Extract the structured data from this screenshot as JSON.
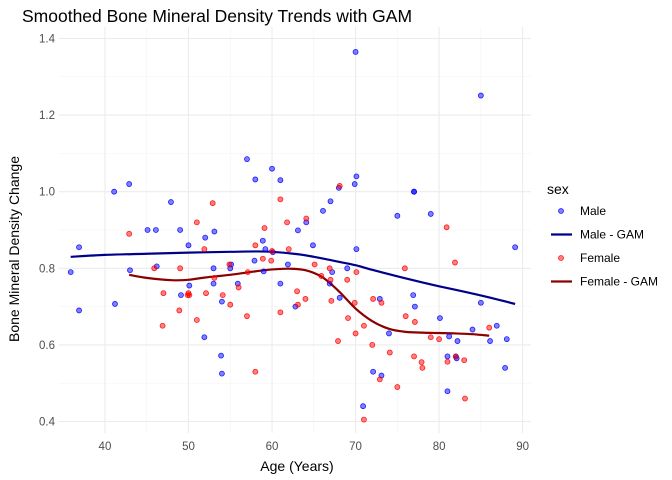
{
  "chart_data": {
    "type": "scatter",
    "title": "Smoothed Bone Mineral Density Trends with GAM",
    "xlabel": "Age (Years)",
    "ylabel": "Bone Mineral Density Change",
    "xlim": [
      34.5,
      91.0
    ],
    "ylim": [
      0.37,
      1.43
    ],
    "x_ticks": [
      40,
      50,
      60,
      70,
      80,
      90
    ],
    "y_ticks": [
      0.4,
      0.6,
      0.8,
      1.0,
      1.2,
      1.4
    ],
    "y_tick_labels": [
      "0.4",
      "0.6",
      "0.8",
      "1.0",
      "1.2",
      "1.4"
    ],
    "grid": true,
    "legend": {
      "title": "sex",
      "position": "right",
      "entries": [
        {
          "label": "Male",
          "kind": "point",
          "color": "#0000ff"
        },
        {
          "label": "Male - GAM",
          "kind": "line",
          "color": "#00008b"
        },
        {
          "label": "Female",
          "kind": "point",
          "color": "#ff0000"
        },
        {
          "label": "Female - GAM",
          "kind": "line",
          "color": "#8b0000"
        }
      ]
    },
    "colors": {
      "male_point": "#0000ff",
      "female_point": "#ff0000",
      "male_gam": "#00008b",
      "female_gam": "#8b0000"
    },
    "series": [
      {
        "name": "Male",
        "kind": "points",
        "x": [
          35.9,
          36.9,
          36.9,
          41.1,
          41.2,
          42.9,
          43.0,
          45.1,
          46.1,
          46.2,
          47.9,
          49.0,
          49.1,
          50.0,
          50.1,
          51.9,
          52.0,
          53.0,
          53.0,
          53.1,
          53.9,
          54.0,
          54.0,
          55.0,
          55.1,
          55.9,
          57.0,
          57.9,
          58.0,
          58.9,
          59.0,
          59.2,
          60.0,
          60.1,
          61.0,
          61.0,
          61.9,
          62.8,
          63.1,
          64.1,
          64.9,
          66.1,
          66.9,
          67.0,
          67.2,
          68.0,
          68.1,
          69.0,
          69.9,
          70.0,
          70.1,
          70.1,
          70.9,
          72.1,
          72.9,
          73.1,
          74.0,
          75.0,
          77.0,
          77.0,
          76.9,
          77.1,
          79.0,
          80.1,
          81.0,
          81.0,
          81.2,
          82.0,
          82.1,
          82.2,
          84.0,
          85.0,
          85.0,
          86.1,
          86.9,
          87.9,
          88.1,
          89.1
        ],
        "y": [
          0.79,
          0.855,
          0.69,
          1.0,
          0.707,
          1.02,
          0.795,
          0.9,
          0.9,
          0.805,
          0.973,
          0.9,
          0.73,
          0.86,
          0.755,
          0.62,
          0.88,
          0.76,
          0.8,
          0.896,
          0.572,
          0.713,
          0.525,
          0.8,
          0.81,
          0.76,
          1.085,
          0.82,
          1.032,
          0.872,
          0.792,
          0.85,
          1.06,
          0.842,
          1.03,
          0.76,
          0.81,
          0.7,
          0.899,
          0.92,
          0.86,
          0.95,
          0.76,
          0.975,
          0.79,
          1.01,
          0.723,
          0.8,
          1.02,
          1.365,
          1.04,
          0.85,
          0.44,
          0.53,
          0.72,
          0.52,
          0.63,
          0.937,
          1.0,
          1.0,
          0.73,
          0.7,
          0.942,
          0.67,
          0.57,
          0.479,
          0.622,
          0.57,
          0.565,
          0.61,
          0.64,
          0.71,
          1.251,
          0.61,
          0.65,
          0.54,
          0.615,
          0.855
        ]
      },
      {
        "name": "Female",
        "kind": "points",
        "x": [
          42.9,
          45.9,
          46.9,
          47.0,
          48.9,
          49.0,
          49.9,
          50.0,
          50.1,
          51.0,
          51.0,
          51.9,
          52.1,
          52.9,
          53.1,
          54.1,
          54.9,
          55.0,
          56.0,
          57.0,
          57.1,
          58.0,
          58.0,
          58.9,
          59.1,
          59.9,
          60.0,
          61.0,
          61.0,
          61.8,
          62.0,
          63.0,
          63.1,
          64.0,
          64.1,
          65.1,
          65.9,
          66.9,
          67.0,
          67.1,
          67.9,
          68.1,
          69.0,
          69.1,
          69.9,
          70.0,
          70.1,
          71.0,
          71.0,
          72.0,
          72.1,
          72.9,
          73.1,
          74.1,
          75.0,
          75.9,
          76.0,
          77.0,
          77.1,
          77.9,
          78.0,
          79.0,
          80.0,
          80.9,
          81.0,
          81.9,
          82.0,
          83.0,
          83.1,
          86.0
        ],
        "y": [
          0.89,
          0.8,
          0.65,
          0.735,
          0.69,
          0.8,
          0.73,
          0.735,
          0.73,
          0.92,
          0.665,
          0.85,
          0.735,
          0.97,
          0.775,
          0.73,
          0.81,
          0.705,
          0.75,
          0.675,
          0.79,
          0.53,
          0.86,
          0.825,
          0.905,
          0.82,
          0.845,
          0.98,
          0.685,
          0.92,
          0.85,
          0.74,
          0.705,
          0.72,
          0.93,
          0.81,
          0.78,
          0.8,
          0.77,
          0.715,
          0.61,
          1.015,
          0.77,
          0.67,
          0.71,
          0.63,
          0.79,
          0.65,
          0.405,
          0.6,
          0.72,
          0.51,
          0.71,
          0.58,
          0.49,
          0.8,
          0.675,
          0.57,
          0.66,
          0.555,
          0.54,
          0.62,
          0.615,
          0.907,
          0.556,
          0.815,
          0.57,
          0.56,
          0.46,
          0.645
        ]
      },
      {
        "name": "Male - GAM",
        "kind": "line",
        "x": [
          35.9,
          40,
          45,
          50,
          55,
          58,
          60,
          63,
          65,
          68,
          70,
          72,
          75,
          78,
          80,
          83,
          86,
          89.1
        ],
        "y": [
          0.83,
          0.835,
          0.838,
          0.841,
          0.843,
          0.844,
          0.843,
          0.837,
          0.83,
          0.817,
          0.808,
          0.796,
          0.779,
          0.763,
          0.753,
          0.739,
          0.724,
          0.707
        ]
      },
      {
        "name": "Female - GAM",
        "kind": "line",
        "x": [
          42.9,
          45,
          48,
          50,
          52,
          55,
          58,
          60,
          62,
          64,
          66,
          68,
          70,
          72,
          74,
          76,
          78,
          80,
          82,
          84,
          86
        ],
        "y": [
          0.783,
          0.775,
          0.769,
          0.77,
          0.776,
          0.783,
          0.792,
          0.797,
          0.799,
          0.795,
          0.777,
          0.74,
          0.695,
          0.662,
          0.642,
          0.634,
          0.632,
          0.631,
          0.63,
          0.628,
          0.624
        ]
      }
    ]
  }
}
